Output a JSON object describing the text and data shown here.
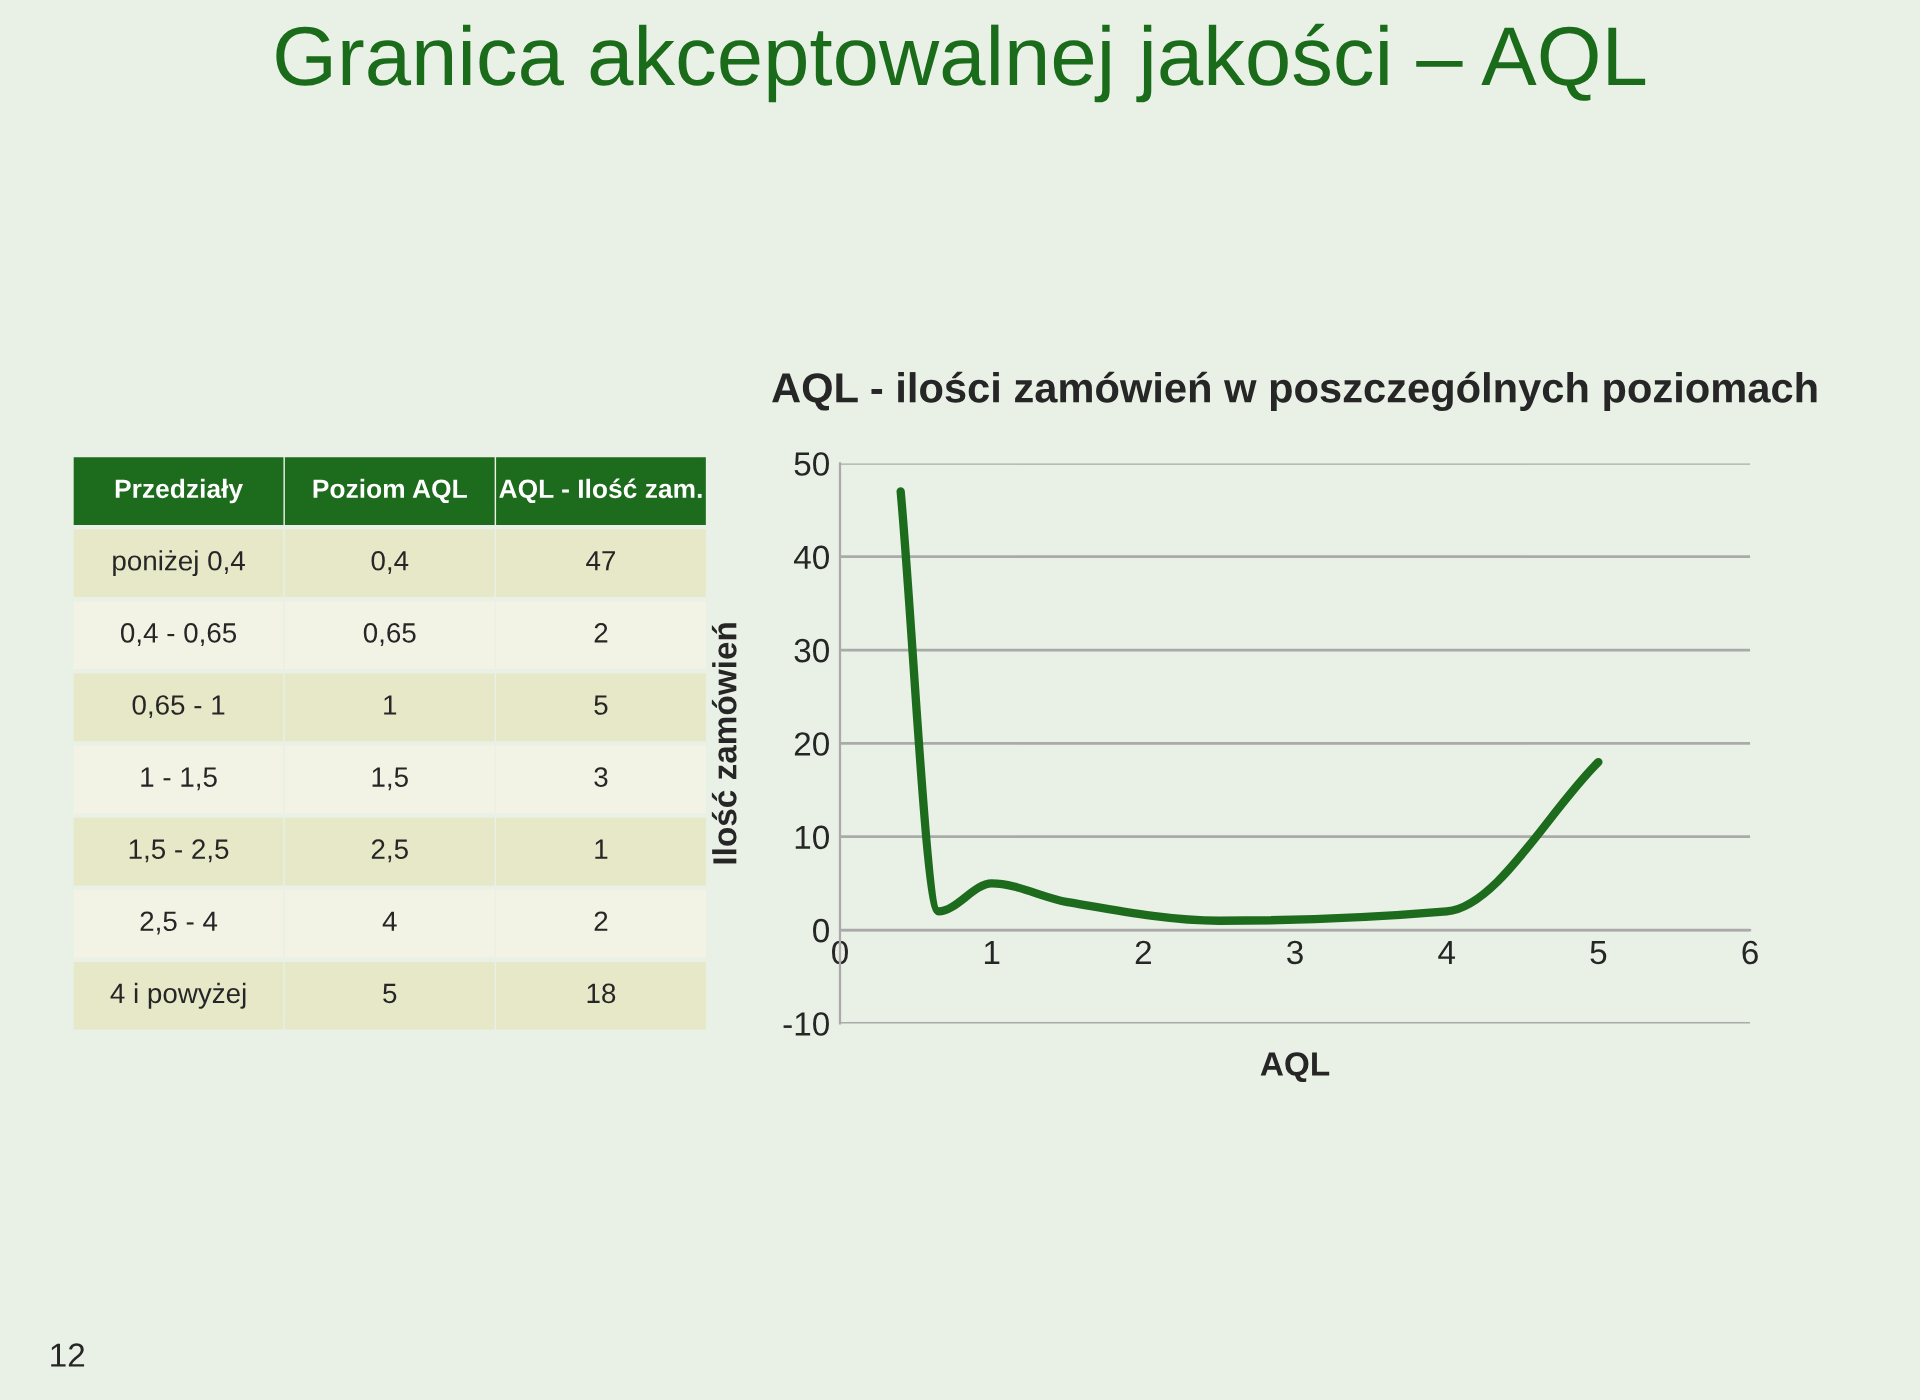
{
  "chart_data": {
    "type": "line",
    "title": "Granica akceptowalnej jakości – AQL",
    "subtitle": "AQL - ilości zamówień w poszczególnych poziomach",
    "xlabel": "AQL",
    "ylabel": "Ilość zamówień",
    "x": [
      0.4,
      0.65,
      1,
      1.5,
      2.5,
      4,
      5
    ],
    "series": [
      {
        "color": "#1d6b1d",
        "values": [
          47,
          2,
          5,
          3,
          1,
          2,
          18
        ]
      }
    ],
    "xlim": [
      0,
      6
    ],
    "xticks": [
      0,
      1,
      2,
      3,
      4,
      5,
      6
    ],
    "ylim": [
      -10,
      50
    ],
    "yticks": [
      -10,
      0,
      10,
      20,
      30,
      40,
      50
    ],
    "grid": "y",
    "marker": "none",
    "line_style": "solid",
    "legend": false,
    "annotations": [
      "Przedziały",
      "Poziom AQL",
      "AQL - Ilość zam.",
      "poniżej 0,4",
      "0,4",
      "47",
      "0,4 - 0,65",
      "0,65",
      "2",
      "0,65 - 1",
      "1",
      "5",
      "1 - 1,5",
      "1,5",
      "3",
      "1,5 - 2,5",
      "2,5",
      "1",
      "2,5 - 4",
      "4",
      "2",
      "4 i powyżej",
      "5",
      "18",
      "12"
    ]
  }
}
